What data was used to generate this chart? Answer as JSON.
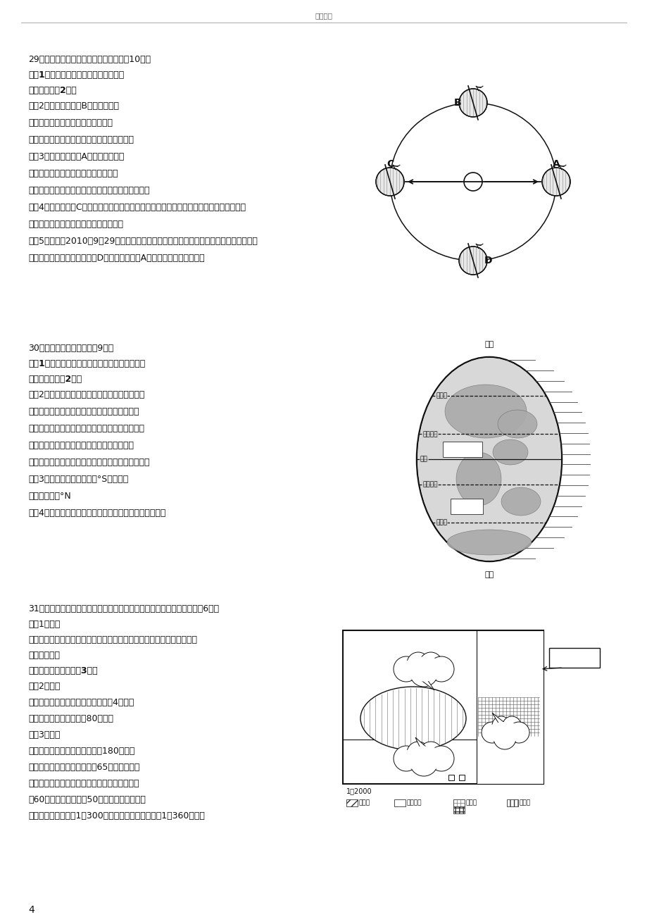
{
  "page_width": 9.2,
  "page_height": 13.02,
  "dpi": 100,
  "bg": "#ffffff",
  "header": "百度文库",
  "footer": "4",
  "q29_title": "29．读地球公转示意图，回答下列问题（10分）",
  "q29_bold1": "　（1）在图中用箭头标出地球自转和公",
  "q29_bold2": "转的方向。（2分）",
  "q29_text": [
    "　（2）当地球公转到B位置时，阳光",
    "直射在＿赤道＿＿上，这一天全球各",
    "地昼夜长短情况是＿昼夜平分＿＿＿＿＿＿。",
    "　（3）当地球公转到A位置时，南极圈",
    "以南地区出现＿极昼＿＿现象，三明市",
    "明溪县的昼夜长短情况是＿＿昼短夜长＿＿＿＿＿。",
    "　（4）当地球处于C点位置时，我们把这一天叫做＿夏至＿＿日（节气），北半球得到太阳",
    "的热量比南半球＿＿多＿＿（多或少）。",
    "　（5）今天是2010年9月29日，我们正在进行上中学以来的第一次月考，此时地球在公转",
    "轨道上运行的地点位于图中＿D＿＿＿点与＿＿A＿＿点之间（填字母）。"
  ],
  "q30_title": "30．读地球五带图，回答（9分）",
  "q30_bold1": "　（1）在图中正确的位置上填写五带中热带和南",
  "q30_bold2": "温带的名称。（2分）",
  "q30_text": [
    "　（2）人们根据太阳热量在地表的分布状况，把",
    "地球表面划分为五个带，五带中，地面获得太阳",
    "热量最多的是＿＿热带＿＿，没有太阳直射，也没",
    "有极昼和极夜，只有太阳斜射和四季分明的是",
    "＿＿温带＿＿＿，有极昼和极夜的是＿＿寒带＿＿。",
    "　（3）南回归线的纬度是＿°S；北极圈",
    "的纬度是＿＿°N",
    "　（4）北回归线是＿热＿＿带和＿温＿＿＿带的分界线。"
  ],
  "q31_title": "31．请你参加某中学地理兴趣小组开展的校园规划活动，完成下列要求（6分）",
  "q31_text1": "　（1）绘图",
  "q31_text2": "　如图所示，教学楼位于运动场南北两侧，学生公寓位于科技楼的北面。",
  "q31_bold3": "请你按照图例",
  "q31_bold4": "将平面图绘制完整。（3分）",
  "q31_text": [
    "　（2）计算",
    "　量得图中南北两幢教学楼的距离为4厘米，",
    "则两楼的实地距离应为＿80＿米。",
    "　（3）设计",
    "　已知校园计划扩建到长宽各为180米的规",
    "模，要求每位同学在长宽各为65厘米的纸张上",
    "画一张校园规划图，规定所画图的长宽最大不超",
    "过60厘米，最小不小于50厘米，则所适用的比",
    "例尺最大不得超过＿1：300＿＿，最小不得小于＿＿1：360＿＿。"
  ]
}
